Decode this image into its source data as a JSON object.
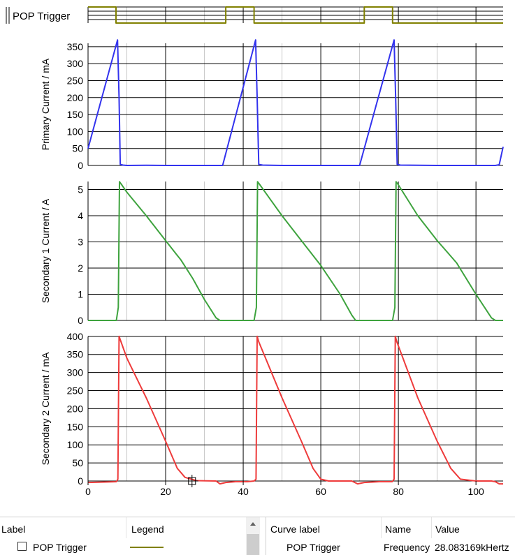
{
  "chart_data": [
    {
      "type": "line",
      "title": "",
      "ylabel": "POP Trigger",
      "xlim": [
        0,
        107
      ],
      "grid": true,
      "series": [
        {
          "name": "POP Trigger",
          "color": "#808000",
          "x": [
            0,
            7.2,
            7.2,
            35.5,
            35.5,
            42.8,
            42.8,
            71.2,
            71.2,
            78.5,
            78.5,
            107
          ],
          "y": [
            1,
            1,
            0,
            0,
            1,
            1,
            0,
            0,
            1,
            1,
            0,
            0
          ]
        }
      ]
    },
    {
      "type": "line",
      "title": "",
      "ylabel": "Primary Current / mA",
      "xlim": [
        0,
        107
      ],
      "ylim": [
        0,
        370
      ],
      "yticks": [
        "0",
        "50",
        "100",
        "150",
        "200",
        "250",
        "300",
        "350"
      ],
      "grid": true,
      "series": [
        {
          "name": "",
          "color": "#3333ee",
          "x": [
            0,
            7.6,
            8.0,
            8.3,
            9.0,
            10,
            15,
            20,
            25,
            30,
            34.7,
            43.2,
            43.6,
            44.0,
            45,
            50,
            60,
            70,
            78.9,
            79.3,
            79.7,
            80.5,
            90,
            100,
            105,
            106,
            107
          ],
          "y": [
            50,
            370,
            200,
            3,
            1,
            0,
            0.5,
            0,
            0,
            0,
            0,
            370,
            200,
            3,
            1,
            0,
            0,
            0,
            370,
            200,
            3,
            1,
            0,
            0,
            0,
            2,
            55
          ]
        }
      ]
    },
    {
      "type": "line",
      "title": "",
      "ylabel": "Secondary 1 Current / A",
      "xlim": [
        0,
        107
      ],
      "ylim": [
        0,
        5.4
      ],
      "yticks": [
        "0",
        "1",
        "2",
        "3",
        "4",
        "5"
      ],
      "grid": true,
      "series": [
        {
          "name": "",
          "color": "#3ea33e",
          "x": [
            0,
            7.3,
            7.8,
            8.1,
            8.6,
            10,
            15,
            20,
            24,
            27,
            30,
            33,
            34,
            37.5,
            42.8,
            43.4,
            43.7,
            44.2,
            50,
            55,
            60,
            65,
            68,
            69,
            73,
            78.5,
            79.1,
            79.4,
            79.9,
            85,
            90,
            95,
            100,
            104,
            105,
            107
          ],
          "y": [
            0,
            0,
            0.5,
            5.3,
            5.2,
            4.9,
            4.0,
            3.05,
            2.3,
            1.6,
            0.8,
            0.1,
            0,
            0,
            0,
            0.5,
            5.3,
            5.2,
            4.0,
            3.05,
            2.1,
            1.0,
            0.2,
            0,
            0,
            0,
            0.5,
            5.3,
            5.2,
            4.0,
            3.05,
            2.2,
            1.0,
            0.1,
            0,
            0
          ]
        }
      ]
    },
    {
      "type": "line",
      "title": "",
      "ylabel": "Secondary 2 Current / mA",
      "xlabel": "",
      "xlim": [
        0,
        107
      ],
      "ylim": [
        -10,
        400
      ],
      "yticks": [
        "0",
        "50",
        "100",
        "150",
        "200",
        "250",
        "300",
        "350",
        "400"
      ],
      "xticks": [
        "0",
        "20",
        "40",
        "60",
        "80",
        "100"
      ],
      "grid": true,
      "series": [
        {
          "name": "",
          "color": "#ee3b3b",
          "x": [
            0,
            7.3,
            7.7,
            8.0,
            8.5,
            10,
            15,
            20,
            23,
            25,
            28,
            33,
            34,
            35.5,
            38,
            41,
            42.8,
            43.3,
            43.6,
            44.0,
            50,
            55,
            58,
            60,
            62,
            68,
            69.5,
            71.2,
            75,
            78.4,
            78.9,
            79.2,
            79.6,
            85,
            90,
            93.5,
            96,
            100,
            104,
            105,
            106,
            107
          ],
          "y": [
            -4,
            -2,
            5,
            400,
            385,
            340,
            230,
            110,
            35,
            10,
            1,
            0,
            -8,
            -4,
            -2,
            -2,
            0,
            5,
            400,
            385,
            230,
            110,
            35,
            5,
            0,
            0,
            -8,
            -4,
            -2,
            -2,
            5,
            400,
            385,
            230,
            110,
            35,
            5,
            0,
            0,
            -2,
            -8,
            -8
          ]
        }
      ],
      "marker": {
        "x": 26.8,
        "y": 0
      }
    }
  ],
  "legend_panel": {
    "headers": {
      "label": "Label",
      "legend": "Legend"
    },
    "rows": [
      {
        "label": "POP Trigger",
        "legend_color": "#808000"
      }
    ]
  },
  "values_panel": {
    "headers": {
      "curve_label": "Curve label",
      "name": "Name",
      "value": "Value"
    },
    "rows": [
      {
        "curve_label": "POP Trigger",
        "name": "Frequency",
        "value": "28.083169kHertz"
      }
    ]
  }
}
